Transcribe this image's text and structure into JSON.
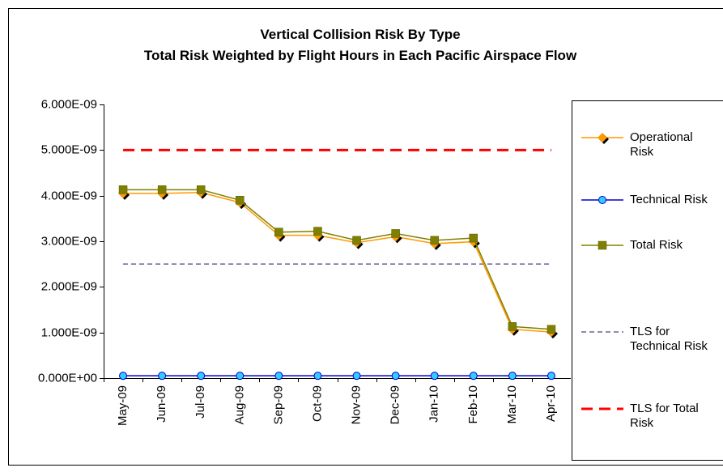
{
  "chart_data": {
    "type": "line",
    "title": "Vertical Collision Risk By Type",
    "subtitle": "Total Risk Weighted by Flight Hours in Each Pacific Airspace Flow",
    "categories": [
      "May-09",
      "Jun-09",
      "Jul-09",
      "Aug-09",
      "Sep-09",
      "Oct-09",
      "Nov-09",
      "Dec-09",
      "Jan-10",
      "Feb-10",
      "Mar-10",
      "Apr-10"
    ],
    "series": [
      {
        "name": "Operational Risk",
        "color": "#ff9900",
        "marker": "diamond",
        "marker_color": "#ff9900",
        "values": [
          4.05e-09,
          4.05e-09,
          4.07e-09,
          3.85e-09,
          3.13e-09,
          3.13e-09,
          2.97e-09,
          3.1e-09,
          2.95e-09,
          2.99e-09,
          1.07e-09,
          1.01e-09
        ]
      },
      {
        "name": "Technical Risk",
        "color": "#0000cc",
        "marker": "circle",
        "marker_color": "#33ccff",
        "values": [
          5e-11,
          5e-11,
          5e-11,
          5e-11,
          5e-11,
          5e-11,
          5e-11,
          5e-11,
          5e-11,
          5e-11,
          5e-11,
          5e-11
        ]
      },
      {
        "name": "Total Risk",
        "color": "#808000",
        "marker": "square",
        "marker_color": "#808000",
        "values": [
          4.13e-09,
          4.13e-09,
          4.13e-09,
          3.9e-09,
          3.2e-09,
          3.22e-09,
          3.02e-09,
          3.17e-09,
          3.02e-09,
          3.07e-09,
          1.13e-09,
          1.07e-09
        ]
      },
      {
        "name": "TLS for Technical Risk",
        "color": "#666699",
        "dash": "6,4",
        "width": 1.5,
        "values": [
          2.5e-09,
          2.5e-09,
          2.5e-09,
          2.5e-09,
          2.5e-09,
          2.5e-09,
          2.5e-09,
          2.5e-09,
          2.5e-09,
          2.5e-09,
          2.5e-09,
          2.5e-09
        ]
      },
      {
        "name": "TLS for Total Risk",
        "color": "#ff0000",
        "dash": "14,8",
        "width": 3,
        "values": [
          5e-09,
          5e-09,
          5e-09,
          5e-09,
          5e-09,
          5e-09,
          5e-09,
          5e-09,
          5e-09,
          5e-09,
          5e-09,
          5e-09
        ]
      }
    ],
    "ylim": [
      0,
      6e-09
    ],
    "yticks": [
      {
        "value": 0,
        "label": "0.000E+00"
      },
      {
        "value": 1e-09,
        "label": "1.000E-09"
      },
      {
        "value": 2e-09,
        "label": "2.000E-09"
      },
      {
        "value": 3e-09,
        "label": "3.000E-09"
      },
      {
        "value": 4e-09,
        "label": "4.000E-09"
      },
      {
        "value": 5e-09,
        "label": "5.000E-09"
      },
      {
        "value": 6e-09,
        "label": "6.000E-09"
      }
    ],
    "grid": false,
    "legend": "right"
  }
}
